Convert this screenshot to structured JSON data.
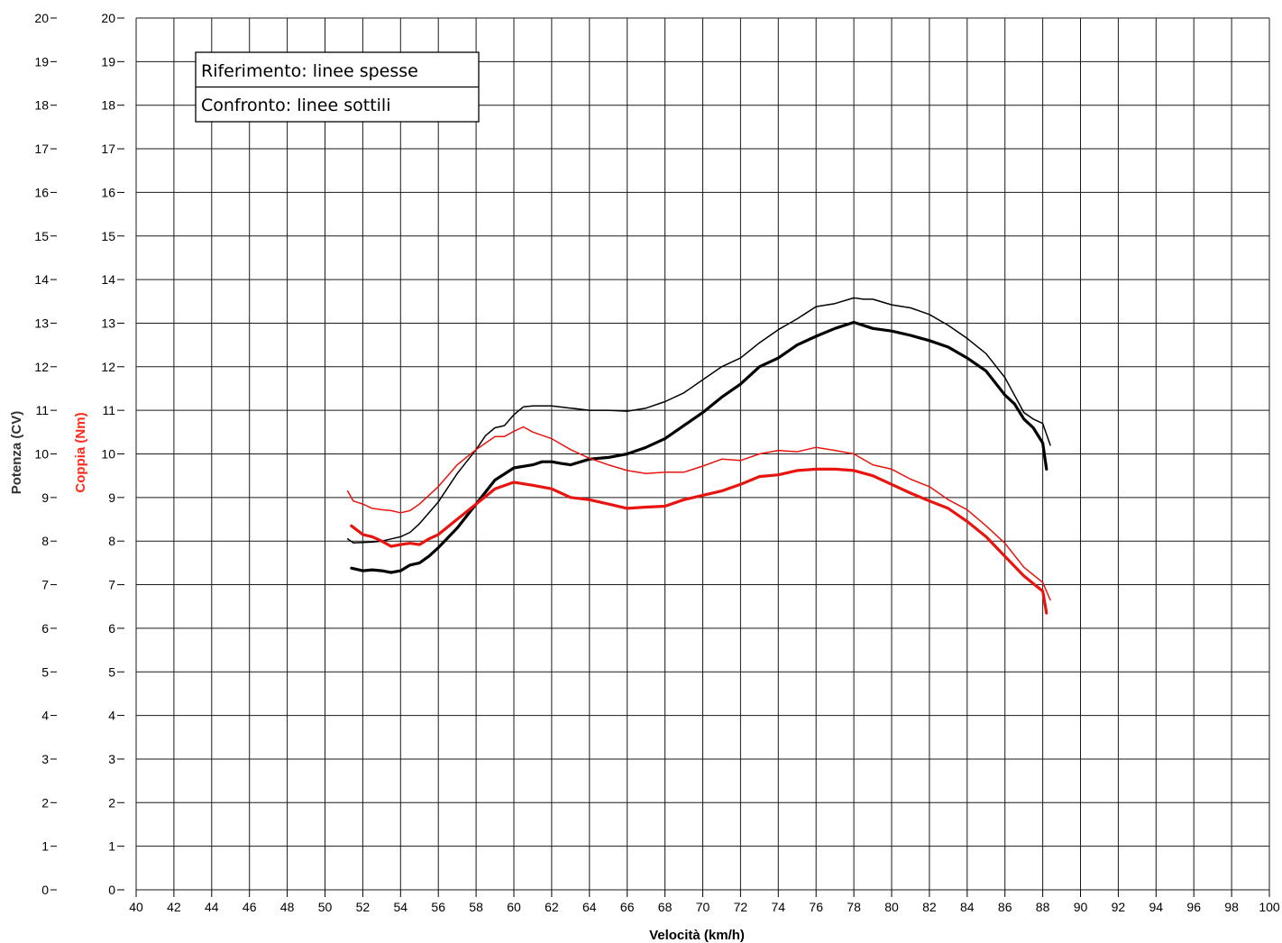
{
  "chart_data": {
    "type": "line",
    "title": "",
    "xlabel": "Velocità (km/h)",
    "ylabel_outer": "Potenza (CV)",
    "ylabel_inner": "Coppia (Nm)",
    "xlim": [
      40,
      100
    ],
    "ylim": [
      0,
      20
    ],
    "x_ticks": [
      40,
      42,
      44,
      46,
      48,
      50,
      52,
      54,
      56,
      58,
      60,
      62,
      64,
      66,
      68,
      70,
      72,
      74,
      76,
      78,
      80,
      82,
      84,
      86,
      88,
      90,
      92,
      94,
      96,
      98,
      100
    ],
    "y_ticks": [
      0,
      1,
      2,
      3,
      4,
      5,
      6,
      7,
      8,
      9,
      10,
      11,
      12,
      13,
      14,
      15,
      16,
      17,
      18,
      19,
      20
    ],
    "grid": true,
    "legend": {
      "position": "top-left",
      "entries": [
        "Riferimento: linee spesse",
        "Confronto: linee sottili"
      ]
    },
    "colors": {
      "power": "#000000",
      "torque": "#e8140f",
      "torque_label": "#ff2a1a",
      "power_label": "#333333"
    },
    "series": [
      {
        "kind": "power",
        "line": "thick",
        "x": [
          51.4,
          52,
          52.5,
          53,
          53.5,
          54,
          54.5,
          55,
          55.5,
          56,
          57,
          58,
          59,
          60,
          61,
          61.5,
          62,
          62.5,
          63,
          64,
          65,
          66,
          67,
          68,
          69,
          70,
          71,
          72,
          73,
          74,
          75,
          76,
          77,
          78,
          79,
          80,
          81,
          82,
          83,
          84,
          85,
          86,
          86.5,
          87,
          87.5,
          88,
          88.2
        ],
        "y": [
          7.38,
          7.32,
          7.34,
          7.32,
          7.28,
          7.32,
          7.45,
          7.5,
          7.65,
          7.85,
          8.3,
          8.85,
          9.4,
          9.68,
          9.75,
          9.82,
          9.82,
          9.78,
          9.75,
          9.88,
          9.92,
          10.0,
          10.15,
          10.35,
          10.65,
          10.95,
          11.3,
          11.6,
          12.0,
          12.2,
          12.5,
          12.7,
          12.88,
          13.02,
          12.88,
          12.82,
          12.72,
          12.6,
          12.45,
          12.2,
          11.9,
          11.35,
          11.15,
          10.8,
          10.6,
          10.25,
          9.65
        ]
      },
      {
        "kind": "power",
        "line": "thin",
        "x": [
          51.2,
          51.5,
          52,
          52.5,
          53,
          53.5,
          54,
          54.5,
          55,
          56,
          57,
          58,
          58.5,
          59,
          59.5,
          60,
          60.5,
          61,
          62,
          63,
          64,
          65,
          66,
          67,
          68,
          69,
          70,
          71,
          72,
          73,
          74,
          75,
          76,
          77,
          78,
          78.5,
          79,
          80,
          81,
          82,
          83,
          84,
          85,
          86,
          86.5,
          87,
          87.5,
          88,
          88.4
        ],
        "y": [
          8.05,
          7.96,
          7.97,
          7.98,
          8.0,
          8.05,
          8.1,
          8.2,
          8.4,
          8.9,
          9.55,
          10.1,
          10.42,
          10.6,
          10.65,
          10.9,
          11.08,
          11.1,
          11.1,
          11.05,
          11.0,
          11.0,
          10.98,
          11.05,
          11.2,
          11.4,
          11.7,
          12.0,
          12.2,
          12.55,
          12.85,
          13.1,
          13.38,
          13.45,
          13.58,
          13.55,
          13.55,
          13.42,
          13.35,
          13.2,
          12.95,
          12.65,
          12.3,
          11.75,
          11.35,
          10.95,
          10.8,
          10.7,
          10.2
        ]
      },
      {
        "kind": "torque",
        "line": "thick",
        "x": [
          51.4,
          52,
          52.5,
          53,
          53.5,
          54,
          54.5,
          55,
          55.5,
          56,
          57,
          58,
          59,
          60,
          61,
          62,
          63,
          64,
          65,
          66,
          67,
          68,
          69,
          70,
          71,
          72,
          73,
          74,
          75,
          76,
          77,
          78,
          79,
          80,
          81,
          82,
          83,
          84,
          85,
          86,
          87,
          88,
          88.2
        ],
        "y": [
          8.35,
          8.15,
          8.1,
          8.0,
          7.88,
          7.92,
          7.95,
          7.92,
          8.05,
          8.15,
          8.5,
          8.85,
          9.2,
          9.35,
          9.28,
          9.2,
          9.0,
          8.95,
          8.85,
          8.75,
          8.78,
          8.8,
          8.95,
          9.05,
          9.15,
          9.3,
          9.48,
          9.52,
          9.62,
          9.65,
          9.65,
          9.62,
          9.5,
          9.3,
          9.1,
          8.92,
          8.75,
          8.45,
          8.1,
          7.65,
          7.2,
          6.85,
          6.35
        ]
      },
      {
        "kind": "torque",
        "line": "thin",
        "x": [
          51.2,
          51.5,
          52,
          52.5,
          53,
          53.5,
          54,
          54.5,
          55,
          56,
          57,
          58,
          59,
          59.5,
          60,
          60.5,
          61,
          62,
          63,
          64,
          65,
          66,
          67,
          68,
          69,
          70,
          71,
          72,
          73,
          74,
          75,
          76,
          77,
          78,
          79,
          80,
          81,
          82,
          83,
          84,
          85,
          86,
          87,
          88,
          88.4
        ],
        "y": [
          9.15,
          8.92,
          8.85,
          8.75,
          8.72,
          8.7,
          8.65,
          8.7,
          8.85,
          9.25,
          9.75,
          10.1,
          10.4,
          10.4,
          10.52,
          10.62,
          10.5,
          10.35,
          10.1,
          9.9,
          9.75,
          9.62,
          9.55,
          9.58,
          9.58,
          9.72,
          9.88,
          9.85,
          10.0,
          10.08,
          10.05,
          10.15,
          10.08,
          10.0,
          9.75,
          9.65,
          9.42,
          9.25,
          8.95,
          8.72,
          8.35,
          7.95,
          7.4,
          7.05,
          6.65
        ]
      }
    ]
  }
}
